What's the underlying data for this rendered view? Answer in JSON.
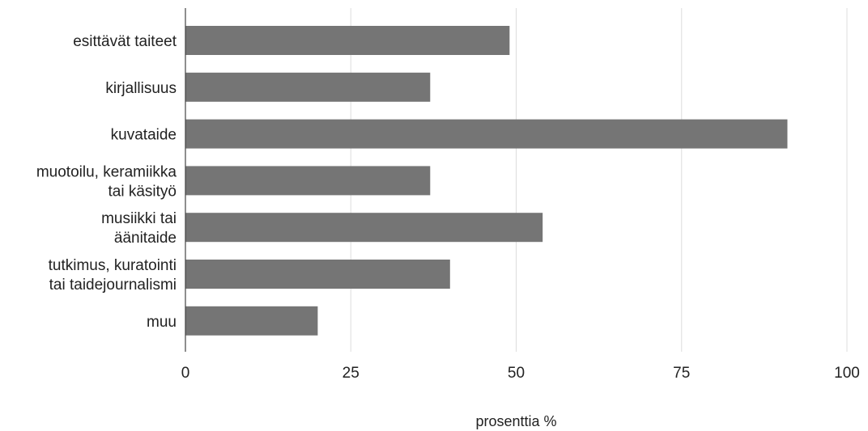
{
  "chart_data": {
    "type": "bar",
    "orientation": "horizontal",
    "categories": [
      [
        "esittävät taiteet"
      ],
      [
        "kirjallisuus"
      ],
      [
        "kuvataide"
      ],
      [
        "muotoilu, keramiikka",
        "tai käsityö"
      ],
      [
        "musiikki tai",
        "äänitaide"
      ],
      [
        "tutkimus, kuratointi",
        "tai taidejournalismi"
      ],
      [
        "muu"
      ]
    ],
    "values": [
      49,
      37,
      91,
      37,
      54,
      40,
      20
    ],
    "xlabel": "prosenttia %",
    "ylabel": "",
    "xlim": [
      0,
      100
    ],
    "xticks": [
      0,
      25,
      50,
      75,
      100
    ],
    "xtick_labels": [
      "0",
      "25",
      "50",
      "75",
      "100"
    ],
    "grid": true,
    "legend": "none",
    "colors": {
      "bar": "#757575",
      "grid": "#dddddd",
      "axis": "#444444",
      "text": "#222222"
    }
  }
}
